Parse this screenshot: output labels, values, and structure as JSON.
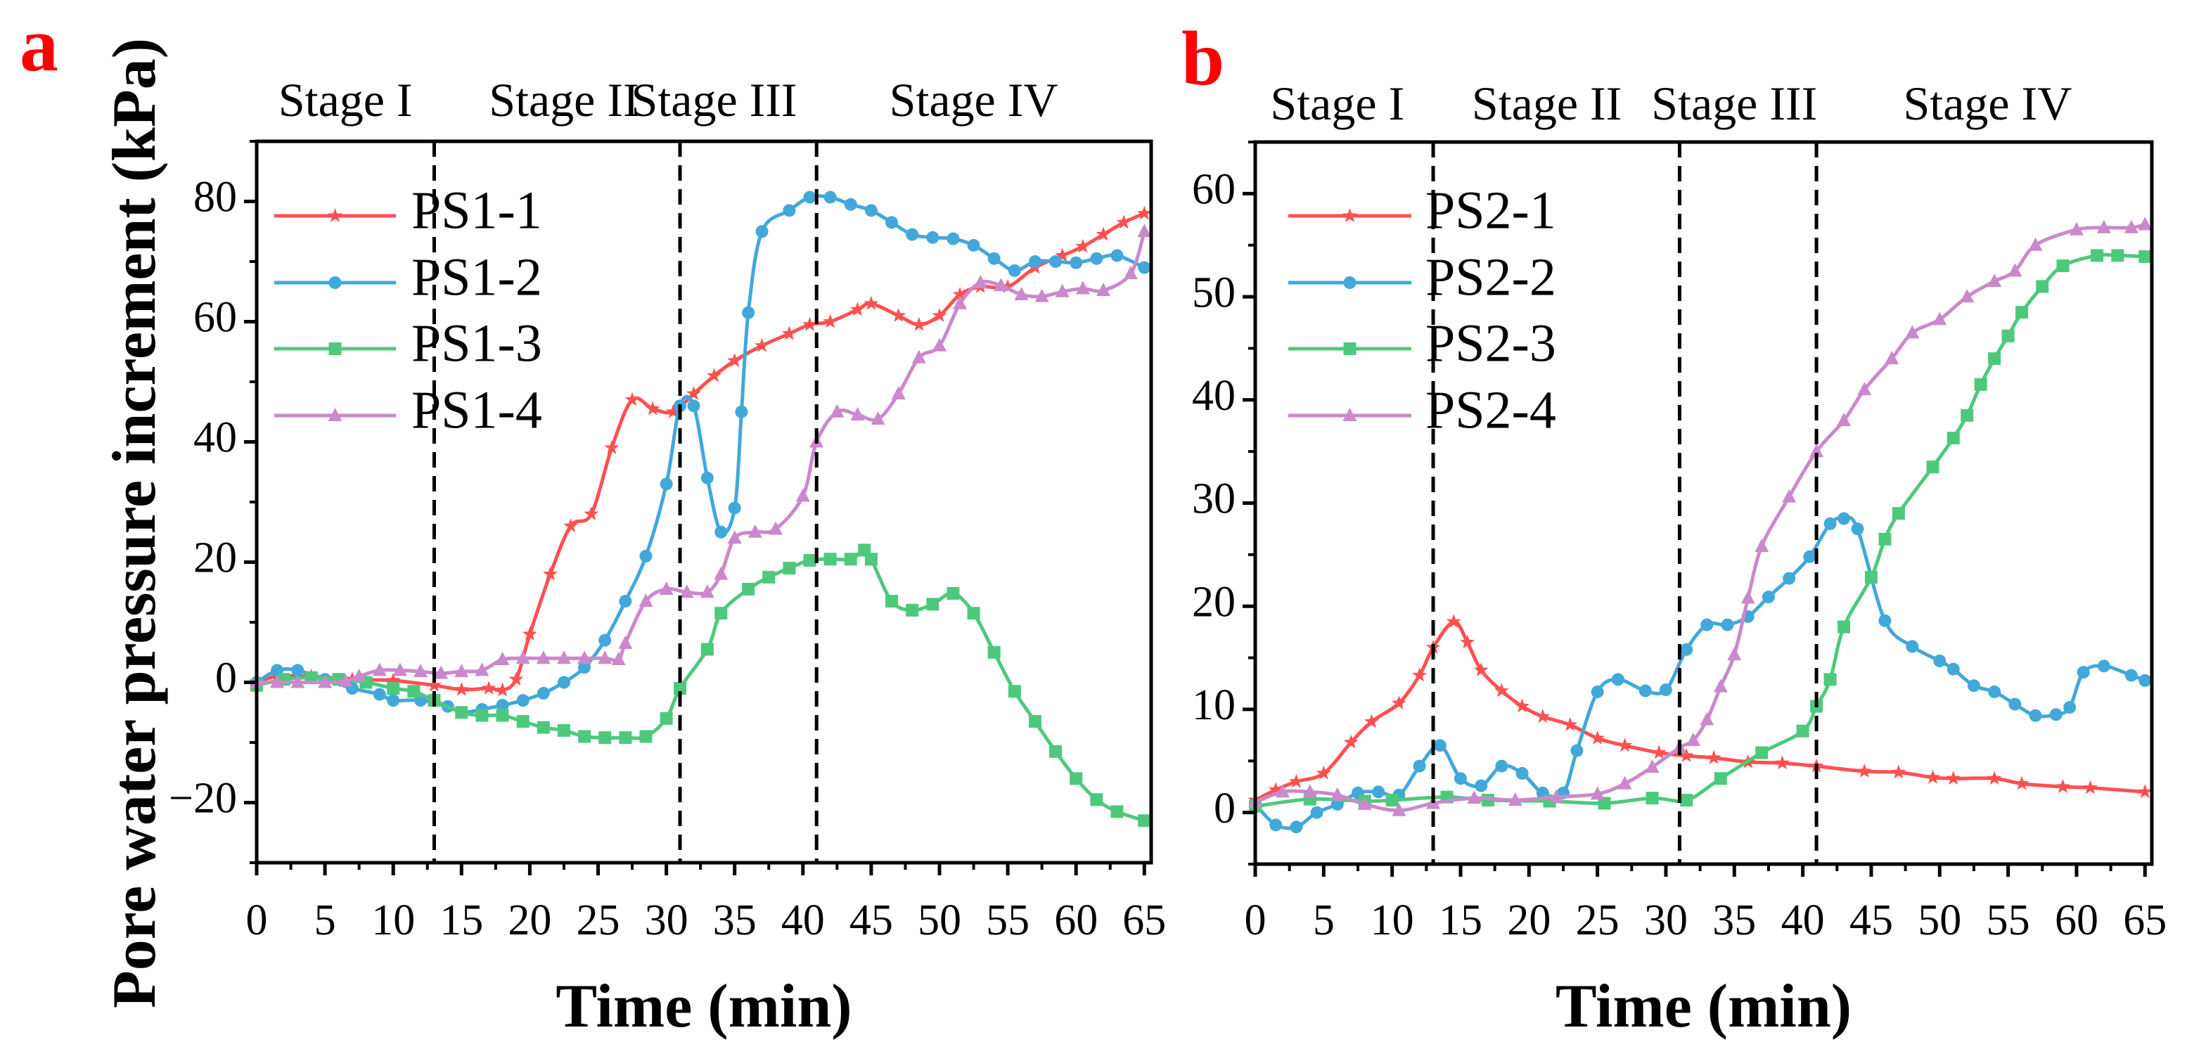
{
  "chart_data": [
    {
      "type": "line",
      "panel_label": "a",
      "title": "",
      "xlabel": "Time (min)",
      "ylabel": "Pore water pressure increment (kPa)",
      "xlim": [
        0,
        65.5
      ],
      "ylim": [
        -30,
        90
      ],
      "xticks": [
        0,
        5,
        10,
        15,
        20,
        25,
        30,
        35,
        40,
        45,
        50,
        55,
        60,
        65
      ],
      "xtick_labels": [
        "0",
        "5",
        "10",
        "15",
        "20",
        "25",
        "30",
        "35",
        "40",
        "45",
        "50",
        "55",
        "60",
        "65"
      ],
      "yticks": [
        -20,
        0,
        20,
        40,
        60,
        80
      ],
      "ytick_labels": [
        "−20",
        "0",
        "20",
        "40",
        "60",
        "80"
      ],
      "grid": false,
      "legend_position": "top-left",
      "stage_dividers": [
        13,
        31,
        41
      ],
      "stages": [
        {
          "label": "Stage I",
          "center": 6.5
        },
        {
          "label": "Stage II",
          "center": 22.5
        },
        {
          "label": "Stage III",
          "center": 33.5
        },
        {
          "label": "Stage IV",
          "center": 52.5
        }
      ],
      "series": [
        {
          "name": "PS1-1",
          "color": "#ff5050",
          "marker": "star",
          "x": [
            0,
            1.5,
            4,
            7,
            10,
            13,
            15,
            17,
            18,
            19,
            20,
            21.5,
            23,
            24.5,
            26,
            27.5,
            29,
            30.5,
            32,
            33.5,
            35,
            37,
            39,
            40.5,
            42,
            44,
            45,
            47,
            48.5,
            50,
            51.5,
            53,
            55,
            57,
            59,
            60.5,
            62,
            63.5,
            65
          ],
          "y": [
            0,
            1,
            1,
            0.5,
            0.3,
            -0.5,
            -1.2,
            -1,
            -1.3,
            0.5,
            8,
            18,
            26,
            28,
            39,
            47,
            45.5,
            45,
            48,
            51,
            53.5,
            56,
            58,
            59.5,
            60,
            62,
            63,
            61,
            59.5,
            61,
            64.5,
            65.8,
            65.8,
            69,
            71,
            72.5,
            74.5,
            76.5,
            78
          ]
        },
        {
          "name": "PS1-2",
          "color": "#42a8da",
          "marker": "circle",
          "x": [
            0,
            1.5,
            3,
            5,
            7,
            9,
            10,
            12,
            14,
            15,
            16.5,
            18,
            19.5,
            21,
            22.5,
            24,
            25.5,
            27,
            28.5,
            30,
            31,
            32,
            33,
            34,
            35,
            35.5,
            36,
            37,
            39,
            40.5,
            42,
            43.5,
            45,
            46.5,
            48,
            49.5,
            51,
            52.5,
            54,
            55.5,
            57,
            58.5,
            60,
            61.5,
            63,
            65
          ],
          "y": [
            0,
            2,
            2,
            0.5,
            -1,
            -2,
            -3,
            -3,
            -4,
            -5,
            -4.5,
            -3.8,
            -3,
            -1.8,
            0,
            2.5,
            7,
            13.5,
            21,
            33,
            46,
            46,
            34,
            25,
            29,
            45,
            61.5,
            75,
            78.5,
            80.7,
            80.7,
            79.5,
            78.5,
            76.5,
            74.5,
            74,
            73.8,
            72.7,
            70.5,
            68.5,
            70,
            70,
            69.8,
            70.5,
            71,
            69
          ]
        },
        {
          "name": "PS1-3",
          "color": "#4dc97b",
          "marker": "square",
          "x": [
            0,
            2,
            4,
            6,
            8,
            10,
            11.5,
            13,
            15,
            16.5,
            18,
            19.5,
            21,
            22.5,
            24,
            25.5,
            27,
            28.5,
            30,
            31,
            33,
            34,
            36,
            37.5,
            39,
            40.5,
            42,
            43.5,
            44.5,
            45,
            46.5,
            48,
            49.5,
            51,
            52.5,
            54,
            55.5,
            57,
            58.5,
            60,
            61.5,
            63,
            65
          ],
          "y": [
            -0.5,
            0.5,
            0.8,
            0.5,
            0,
            -1,
            -1.5,
            -3,
            -5,
            -5.5,
            -5.5,
            -6.5,
            -7.5,
            -8,
            -9,
            -9.2,
            -9.2,
            -9,
            -6,
            -1,
            5.5,
            11.5,
            15.5,
            17.5,
            19,
            20.3,
            20.5,
            20.5,
            22,
            20.5,
            13.5,
            12,
            13,
            14.8,
            11.5,
            5,
            -1.5,
            -6.5,
            -11.5,
            -16,
            -19.5,
            -21.5,
            -23
          ]
        },
        {
          "name": "PS1-4",
          "color": "#cc88cc",
          "marker": "triangle",
          "x": [
            0,
            1.5,
            3,
            5,
            6.5,
            7.5,
            9,
            10.5,
            12,
            13.5,
            15,
            16.5,
            18,
            19.5,
            21,
            22.5,
            24,
            25.5,
            26.5,
            27,
            28.5,
            30,
            31.5,
            33,
            34,
            35,
            36.5,
            38,
            40,
            41,
            42.5,
            44,
            45.5,
            47,
            48.5,
            50,
            51.5,
            53,
            54.5,
            56,
            57.5,
            59,
            60.5,
            62,
            64,
            65
          ],
          "y": [
            0,
            0,
            0,
            0,
            0.2,
            1,
            2,
            2,
            1.8,
            1.5,
            1.8,
            2,
            3.8,
            4,
            4,
            4,
            4,
            4,
            3.8,
            6.5,
            13.5,
            15.5,
            15,
            15,
            18,
            24,
            25,
            25.5,
            31,
            40,
            45,
            44.5,
            43.8,
            48,
            54,
            56,
            63,
            66.5,
            66,
            64.5,
            64.2,
            65,
            65.5,
            65.2,
            68,
            75
          ]
        }
      ]
    },
    {
      "type": "line",
      "panel_label": "b",
      "title": "",
      "xlabel": "Time (min)",
      "ylabel": "",
      "xlim": [
        0,
        65.5
      ],
      "ylim": [
        -5,
        65
      ],
      "xticks": [
        0,
        5,
        10,
        15,
        20,
        25,
        30,
        35,
        40,
        45,
        50,
        55,
        60,
        65
      ],
      "xtick_labels": [
        "0",
        "5",
        "10",
        "15",
        "20",
        "25",
        "30",
        "35",
        "40",
        "45",
        "50",
        "55",
        "60",
        "65"
      ],
      "yticks": [
        0,
        10,
        20,
        30,
        40,
        50,
        60
      ],
      "ytick_labels": [
        "0",
        "10",
        "20",
        "30",
        "40",
        "50",
        "60"
      ],
      "grid": false,
      "legend_position": "top-left",
      "stage_dividers": [
        13,
        31,
        41
      ],
      "stages": [
        {
          "label": "Stage I",
          "center": 6
        },
        {
          "label": "Stage II",
          "center": 21.3
        },
        {
          "label": "Stage III",
          "center": 35
        },
        {
          "label": "Stage IV",
          "center": 53.5
        }
      ],
      "series": [
        {
          "name": "PS2-1",
          "color": "#ff5050",
          "marker": "star",
          "x": [
            0,
            1.5,
            3,
            5,
            7,
            8.5,
            10.5,
            12,
            13,
            14.5,
            15.5,
            16.5,
            18,
            19.5,
            21,
            23,
            25,
            27,
            29.5,
            31.5,
            33.5,
            36,
            38.5,
            41,
            44.5,
            47,
            49.5,
            51,
            54,
            56,
            59,
            61,
            65
          ],
          "y": [
            1.2,
            2.2,
            3,
            3.8,
            6.8,
            8.8,
            10.6,
            13.3,
            16,
            18.5,
            16.5,
            13.8,
            11.8,
            10.3,
            9.3,
            8.5,
            7.2,
            6.5,
            5.8,
            5.5,
            5.3,
            4.9,
            4.8,
            4.5,
            4,
            3.9,
            3.4,
            3.3,
            3.3,
            2.8,
            2.5,
            2.4,
            2
          ]
        },
        {
          "name": "PS2-2",
          "color": "#42a8da",
          "marker": "circle",
          "x": [
            0,
            1.5,
            3,
            4.5,
            6,
            7.5,
            9,
            10.5,
            12,
            13.5,
            15,
            16.5,
            18,
            19.5,
            21,
            22.5,
            23.5,
            25,
            26.5,
            28.5,
            30,
            31.5,
            33,
            34.5,
            36,
            37.5,
            39,
            40.5,
            42,
            43,
            44,
            46,
            48,
            50,
            51,
            52.5,
            54,
            55.5,
            57,
            58.5,
            59.5,
            60.5,
            62,
            64,
            65
          ],
          "y": [
            0.8,
            -1.2,
            -1.4,
            0,
            0.8,
            1.9,
            2,
            1.7,
            4.5,
            6.5,
            3.3,
            2.6,
            4.5,
            3.8,
            1.9,
            1.9,
            6,
            11.7,
            12.9,
            11.8,
            11.9,
            15.8,
            18.2,
            18.2,
            19,
            20.9,
            22.7,
            24.8,
            28,
            28.5,
            27.5,
            18.6,
            16.1,
            14.7,
            13.9,
            12.3,
            11.7,
            10.5,
            9.4,
            9.5,
            10.2,
            13.6,
            14.2,
            13.3,
            12.8
          ]
        },
        {
          "name": "PS2-3",
          "color": "#4dc97b",
          "marker": "square",
          "x": [
            0,
            4,
            8,
            10,
            14,
            17,
            21.5,
            25.5,
            29,
            31.5,
            34,
            37,
            40,
            41,
            42,
            43,
            45,
            46,
            47,
            49.5,
            51,
            52,
            53,
            54,
            55,
            56,
            57.5,
            59,
            61.5,
            63,
            65
          ],
          "y": [
            0.6,
            1.3,
            1.1,
            1.2,
            1.5,
            1.2,
            1.1,
            0.9,
            1.4,
            1.2,
            3.3,
            5.8,
            7.9,
            10.3,
            12.9,
            18,
            22.8,
            26.5,
            29,
            33.5,
            36.3,
            38.5,
            41.5,
            44,
            46.2,
            48.5,
            51,
            53,
            54,
            54,
            53.9
          ]
        },
        {
          "name": "PS2-4",
          "color": "#cc88cc",
          "marker": "triangle",
          "x": [
            0,
            2,
            4,
            6,
            8,
            10.5,
            13,
            16,
            19,
            22,
            25,
            27,
            29,
            31,
            32,
            33,
            34,
            35,
            36,
            37,
            39,
            41,
            43,
            44.5,
            46.5,
            48,
            50,
            52,
            54,
            55.5,
            57,
            60,
            62,
            64,
            65
          ],
          "y": [
            1,
            2,
            2,
            1.7,
            0.8,
            0.2,
            0.9,
            1.4,
            1.2,
            1.5,
            1.8,
            2.8,
            4.4,
            6.3,
            7,
            9,
            12.2,
            15.3,
            20.8,
            25.8,
            30.6,
            35,
            38,
            41,
            44,
            46.5,
            47.8,
            50,
            51.5,
            52.5,
            55,
            56.5,
            56.7,
            56.7,
            57
          ]
        }
      ]
    }
  ]
}
